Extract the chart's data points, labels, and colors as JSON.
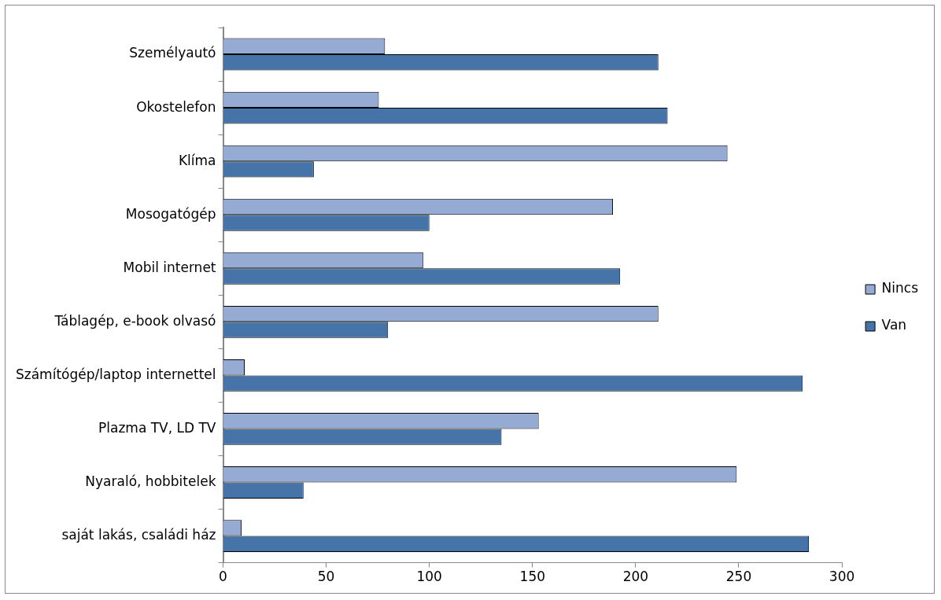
{
  "chart_data": {
    "type": "bar",
    "orientation": "horizontal",
    "categories": [
      "Személyautó",
      "Okostelefon",
      "Klíma",
      "Mosogatógép",
      "Mobil internet",
      "Táblagép, e-book olvasó",
      "Számítógép/laptop internettel",
      "Plazma TV, LD TV",
      "Nyaraló, hobbitelek",
      "saját lakás, családi ház"
    ],
    "series": [
      {
        "name": "Nincs",
        "color": "#95abd3",
        "values": [
          78.5,
          75.5,
          244.5,
          189,
          97,
          211,
          10.5,
          153,
          249,
          9
        ]
      },
      {
        "name": "Van",
        "color": "#4674a8",
        "values": [
          211,
          215.5,
          44,
          100,
          192.5,
          80,
          281,
          135,
          39,
          284
        ]
      }
    ],
    "xlim": [
      0,
      300
    ],
    "xticks": [
      0,
      50,
      100,
      150,
      200,
      250,
      300
    ],
    "grid": false,
    "legend": "right"
  }
}
